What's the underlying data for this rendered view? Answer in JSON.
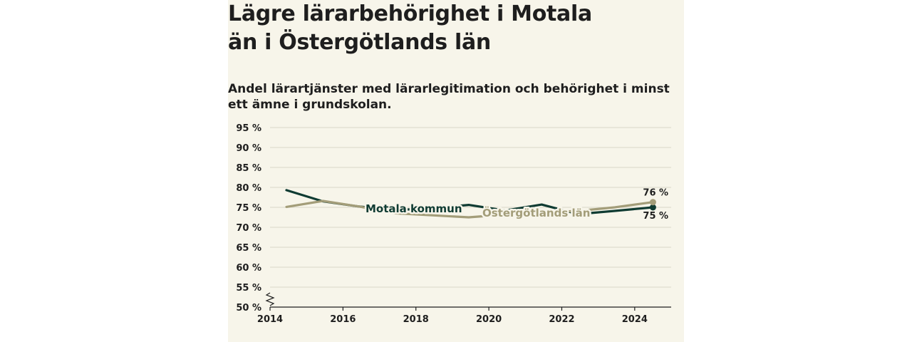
{
  "title": "Lägre lärarbehörighet i Motala än i Östergötlands län",
  "subtitle": "Andel lärartjänster med lärarlegitimation och behörighet i minst ett ämne i grundskolan.",
  "colors": {
    "background": "#f7f5ea",
    "motala": "#0f3b32",
    "ostergotland": "#a39d79",
    "grid": "#d9d6c8",
    "axis": "#1e1e1e"
  },
  "chart_data": {
    "type": "line",
    "ylim": [
      50,
      95
    ],
    "xlim": [
      2014,
      2025
    ],
    "y_ticks": [
      50,
      55,
      60,
      65,
      70,
      75,
      80,
      85,
      90,
      95
    ],
    "y_tick_labels": [
      "50 %",
      "55 %",
      "60 %",
      "65 %",
      "70 %",
      "75 %",
      "80 %",
      "85 %",
      "90 %",
      "95 %"
    ],
    "x_ticks": [
      2014,
      2016,
      2018,
      2020,
      2022,
      2024
    ],
    "x_tick_labels": [
      "2014",
      "2016",
      "2018",
      "2020",
      "2022",
      "2024"
    ],
    "axis_break": true,
    "grid": true,
    "series": [
      {
        "name": "Motala kommun",
        "color": "#0f3b32",
        "x": [
          2014.45,
          2015.45,
          2016.45,
          2017.45,
          2018.45,
          2019.45,
          2020.45,
          2021.45,
          2022.45,
          2023.45,
          2024.5
        ],
        "y": [
          79.3,
          76.5,
          75.2,
          74.3,
          74.8,
          75.6,
          74.2,
          75.7,
          73.3,
          74.1,
          75.0
        ],
        "end_label": "75 %"
      },
      {
        "name": "Östergötlands län",
        "color": "#a39d79",
        "x": [
          2014.45,
          2015.45,
          2016.45,
          2017.45,
          2018.45,
          2019.45,
          2020.45,
          2021.45,
          2022.45,
          2023.45,
          2024.5
        ],
        "y": [
          75.1,
          76.6,
          75.2,
          73.5,
          73.0,
          72.5,
          73.2,
          73.7,
          74.1,
          75.0,
          76.3
        ],
        "end_label": "76 %"
      }
    ]
  }
}
